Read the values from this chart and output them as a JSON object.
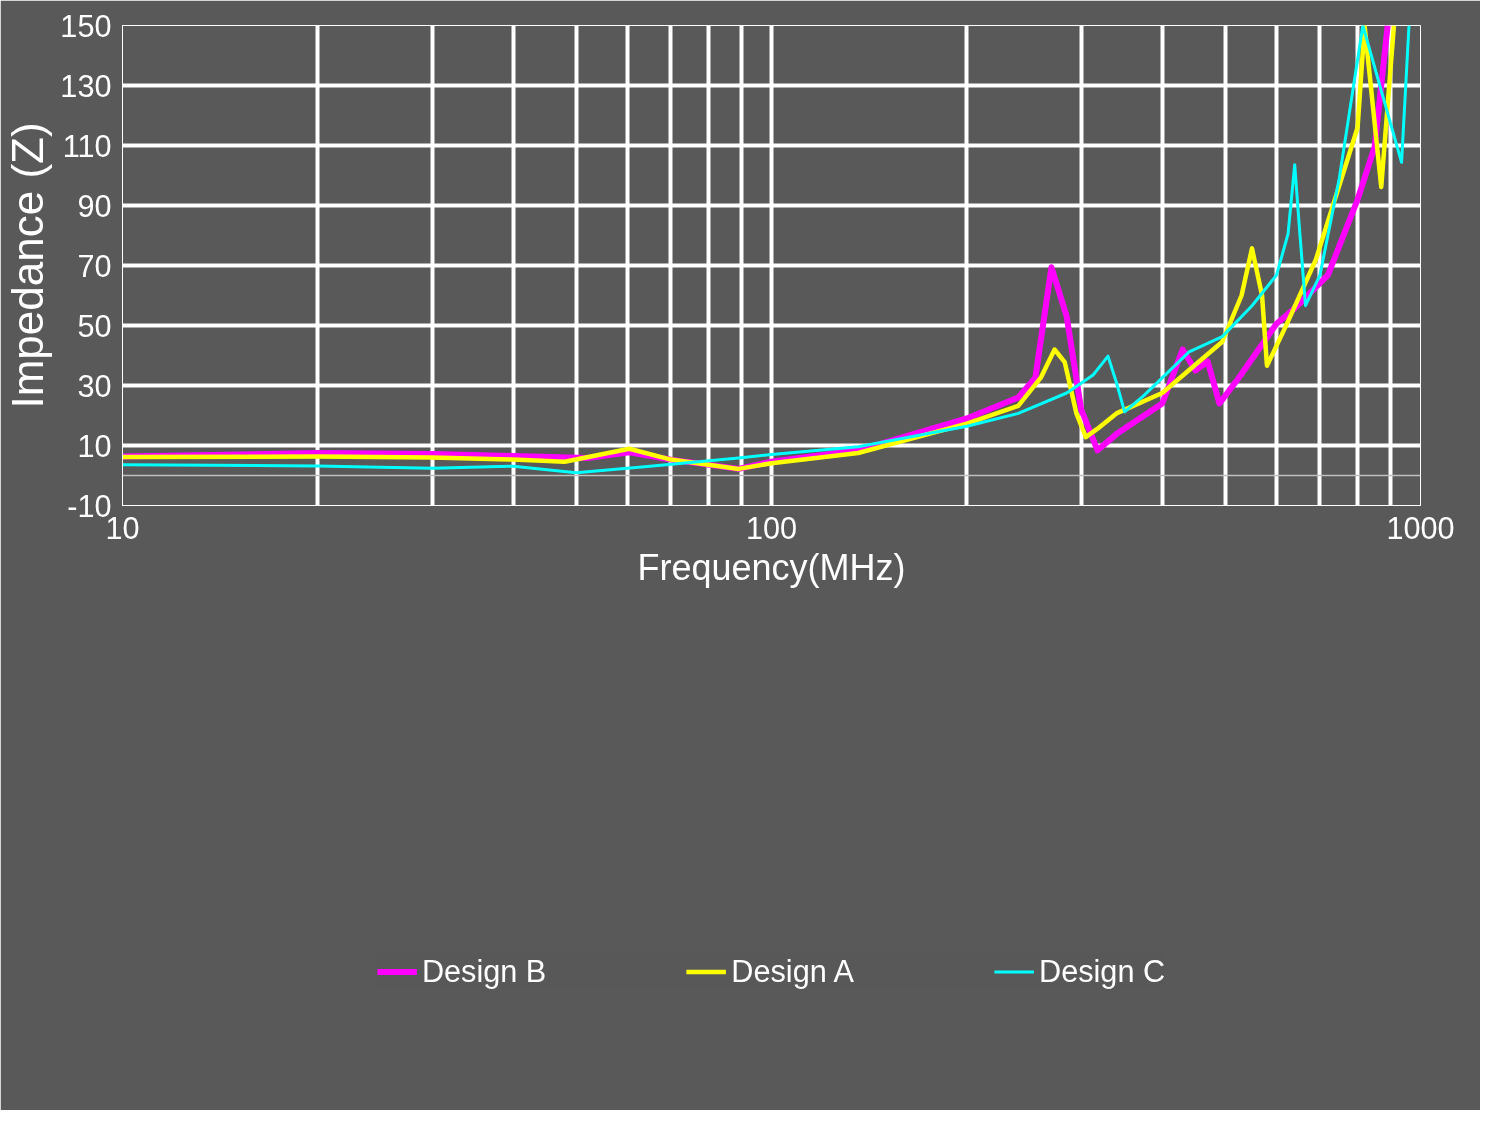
{
  "chart_data": {
    "type": "line",
    "xlabel": "Frequency(MHz)",
    "ylabel": "Impedance (Z)",
    "log": "x",
    "xlim": [
      10,
      1000
    ],
    "ylim": [
      -10,
      150
    ],
    "xticks": [
      10,
      {
        "value": 20,
        "label": null
      },
      {
        "value": 30,
        "label": null
      },
      {
        "value": 40,
        "label": null
      },
      {
        "value": 50,
        "label": null
      },
      {
        "value": 60,
        "label": null
      },
      {
        "value": 70,
        "label": null
      },
      {
        "value": 80,
        "label": null
      },
      {
        "value": 90,
        "label": null
      },
      100,
      {
        "value": 200,
        "label": null
      },
      {
        "value": 300,
        "label": null
      },
      {
        "value": 400,
        "label": null
      },
      {
        "value": 500,
        "label": null
      },
      {
        "value": 600,
        "label": null
      },
      {
        "value": 700,
        "label": null
      },
      {
        "value": 800,
        "label": null
      },
      {
        "value": 900,
        "label": null
      },
      1000
    ],
    "yticks": [
      -10,
      10,
      30,
      50,
      70,
      90,
      110,
      130,
      150
    ],
    "grid": true,
    "legend": "bottom",
    "line_style": "solid",
    "marker": "none",
    "ref_lines": [
      {
        "axis": "y",
        "value": 0,
        "label": null,
        "color": "#bfbfbf"
      }
    ],
    "series": [
      {
        "name": "Design B",
        "color": "#ff00ff",
        "x": [
          10,
          20,
          30,
          40,
          52,
          60.4,
          70,
          89,
          100,
          136,
          200,
          240,
          255,
          270,
          285,
          300,
          318,
          340,
          400,
          430,
          450,
          470,
          490,
          525,
          600,
          640,
          720,
          800,
          850,
          890
        ],
        "values": [
          6.3,
          7.5,
          7.2,
          6.5,
          5.8,
          7.7,
          5.3,
          2.2,
          4.6,
          8.4,
          19,
          26,
          32.6,
          69.4,
          53,
          22,
          8.4,
          13.8,
          24,
          42,
          35,
          38,
          24,
          32.6,
          50.6,
          55.7,
          66.8,
          92,
          109.6,
          150
        ]
      },
      {
        "name": "Design A",
        "color": "#ffff00",
        "x": [
          10,
          20,
          30,
          40,
          48,
          60.4,
          70,
          89,
          100,
          136,
          200,
          240,
          260,
          273,
          283,
          295,
          305,
          318,
          340,
          400,
          495,
          530,
          550,
          570,
          580,
          620,
          690,
          800,
          820,
          870,
          910
        ],
        "values": [
          6.2,
          6.3,
          6.0,
          5.3,
          4.6,
          8.9,
          5.3,
          2.2,
          4.1,
          7.5,
          17.3,
          23.2,
          32.6,
          42,
          37.8,
          20.7,
          12.8,
          15.6,
          20.7,
          27.5,
          44.6,
          60,
          75.7,
          60,
          36.6,
          49.7,
          72,
          116,
          150,
          96.2,
          150
        ]
      },
      {
        "name": "Design C",
        "color": "#00ffff",
        "x": [
          10,
          20,
          30,
          40,
          50,
          65,
          89,
          100,
          136,
          200,
          240,
          285,
          313,
          330,
          340,
          350,
          375,
          440,
          495,
          550,
          600,
          625,
          640,
          650,
          665,
          700,
          750,
          815,
          935,
          960
        ],
        "values": [
          3.6,
          3.2,
          2.4,
          3.1,
          0.9,
          3.1,
          5.8,
          7.0,
          9.6,
          16.4,
          20.7,
          27.5,
          33.5,
          39.8,
          31,
          21.2,
          26.7,
          41.2,
          46.3,
          56.6,
          66.8,
          80.5,
          103.6,
          84,
          56.6,
          66.8,
          99.3,
          150,
          104.4,
          150
        ]
      }
    ]
  }
}
